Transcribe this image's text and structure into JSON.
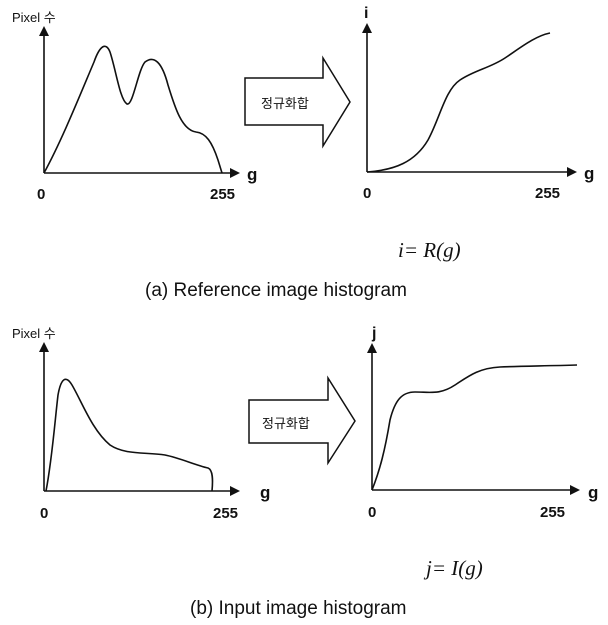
{
  "panel_a": {
    "left_y_axis_label": "Pixel 수",
    "left_x_axis_label": "g",
    "left_x_tick_min": "0",
    "left_x_tick_max": "255",
    "arrow_label": "정규화합",
    "right_y_axis_label": "i",
    "right_x_axis_label": "g",
    "right_x_tick_min": "0",
    "right_x_tick_max": "255",
    "equation": "i= R(g)",
    "caption": "(a) Reference image histogram"
  },
  "panel_b": {
    "left_y_axis_label": "Pixel 수",
    "left_x_axis_label": "g",
    "left_x_tick_min": "0",
    "left_x_tick_max": "255",
    "arrow_label": "정규화합",
    "right_y_axis_label": "j",
    "right_x_axis_label": "g",
    "right_x_tick_min": "0",
    "right_x_tick_max": "255",
    "equation": "j= I(g)",
    "caption": "(b) Input image histogram"
  }
}
